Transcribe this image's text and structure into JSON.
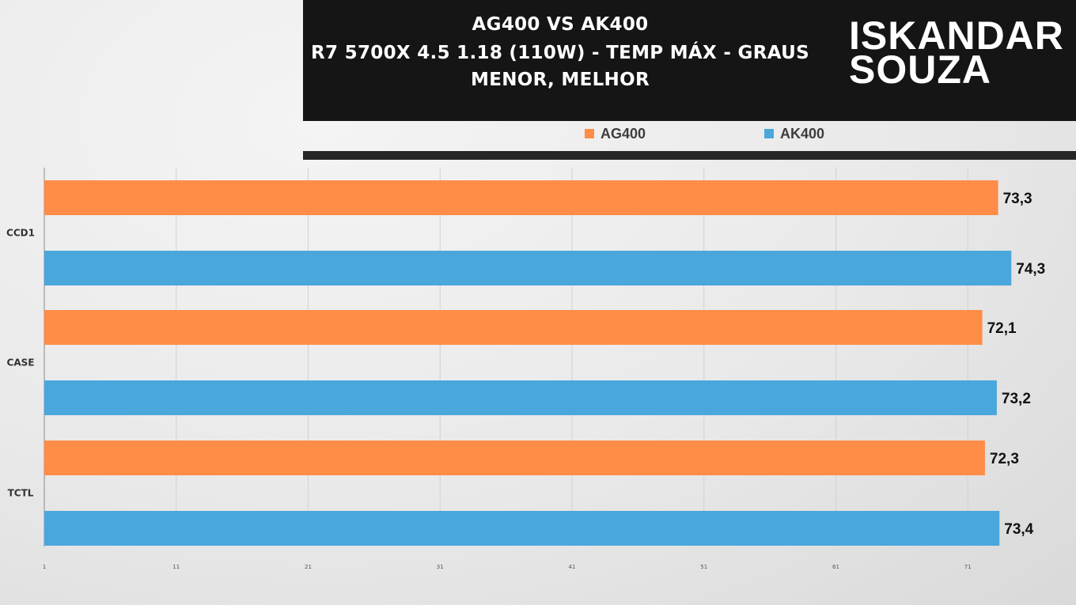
{
  "header": {
    "title_line1": "AG400 VS AK400",
    "title_line2": "R7 5700X 4.5 1.18 (110W) - TEMP MÁX - GRAUS",
    "title_line3": "MENOR, MELHOR",
    "logo_line1": "ISKANDAR",
    "logo_line2": "SOUZA"
  },
  "chart_data": {
    "type": "bar",
    "orientation": "horizontal",
    "title": "AG400 VS AK400",
    "subtitle": "R7 5700X 4.5 1.18 (110W) - TEMP MÁX - GRAUS / MENOR, MELHOR",
    "categories": [
      "CCD1",
      "CASE",
      "TCTL"
    ],
    "series": [
      {
        "name": "AG400",
        "color": "#ff8c47",
        "values": [
          73.3,
          72.1,
          72.3
        ],
        "labels": [
          "73,3",
          "72,1",
          "72,3"
        ]
      },
      {
        "name": "AK400",
        "color": "#4aa7dc",
        "values": [
          74.3,
          73.2,
          73.4
        ],
        "labels": [
          "74,3",
          "73,2",
          "73,4"
        ]
      }
    ],
    "xlim": [
      1,
      81
    ],
    "xticks": [
      1,
      11,
      21,
      31,
      41,
      51,
      61,
      71
    ],
    "grid": true,
    "legend": "top"
  }
}
